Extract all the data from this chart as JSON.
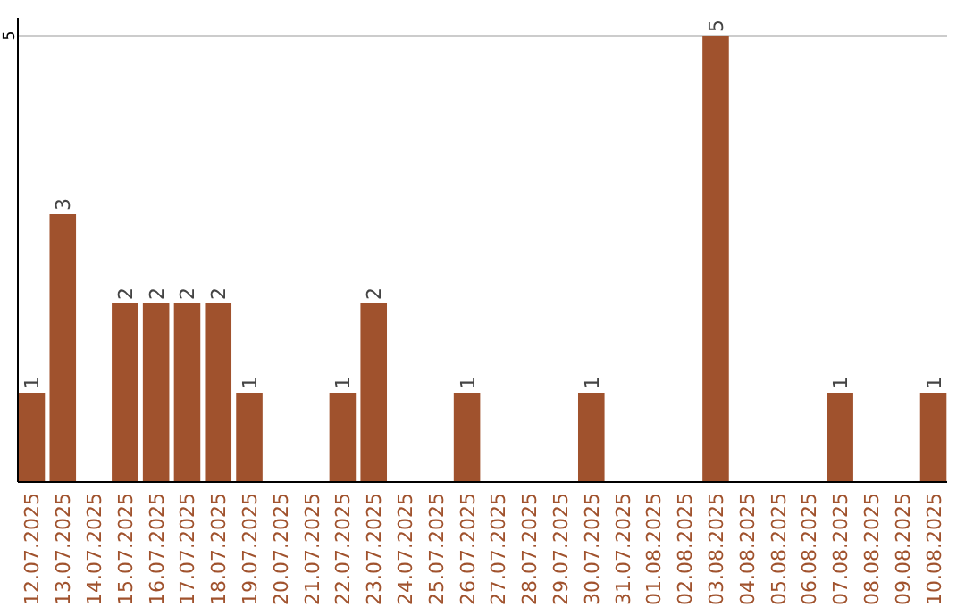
{
  "chart_data": {
    "type": "bar",
    "categories": [
      "12.07.2025",
      "13.07.2025",
      "14.07.2025",
      "15.07.2025",
      "16.07.2025",
      "17.07.2025",
      "18.07.2025",
      "19.07.2025",
      "20.07.2025",
      "21.07.2025",
      "22.07.2025",
      "23.07.2025",
      "24.07.2025",
      "25.07.2025",
      "26.07.2025",
      "27.07.2025",
      "28.07.2025",
      "29.07.2025",
      "30.07.2025",
      "31.07.2025",
      "01.08.2025",
      "02.08.2025",
      "03.08.2025",
      "04.08.2025",
      "05.08.2025",
      "06.08.2025",
      "07.08.2025",
      "08.08.2025",
      "09.08.2025",
      "10.08.2025"
    ],
    "values": [
      1,
      3,
      0,
      2,
      2,
      2,
      2,
      1,
      0,
      0,
      1,
      2,
      0,
      0,
      1,
      0,
      0,
      0,
      1,
      0,
      0,
      0,
      5,
      0,
      0,
      0,
      1,
      0,
      0,
      1
    ],
    "value_labels": [
      "1",
      "3",
      null,
      "2",
      "2",
      "2",
      "2",
      "1",
      null,
      null,
      "1",
      "2",
      null,
      null,
      "1",
      null,
      null,
      null,
      "1",
      null,
      null,
      null,
      "5",
      null,
      null,
      null,
      "1",
      null,
      null,
      "1"
    ],
    "color": "#a0522d",
    "ylim": [
      0,
      5.2
    ],
    "yticks": [
      5
    ],
    "grid": "y"
  }
}
